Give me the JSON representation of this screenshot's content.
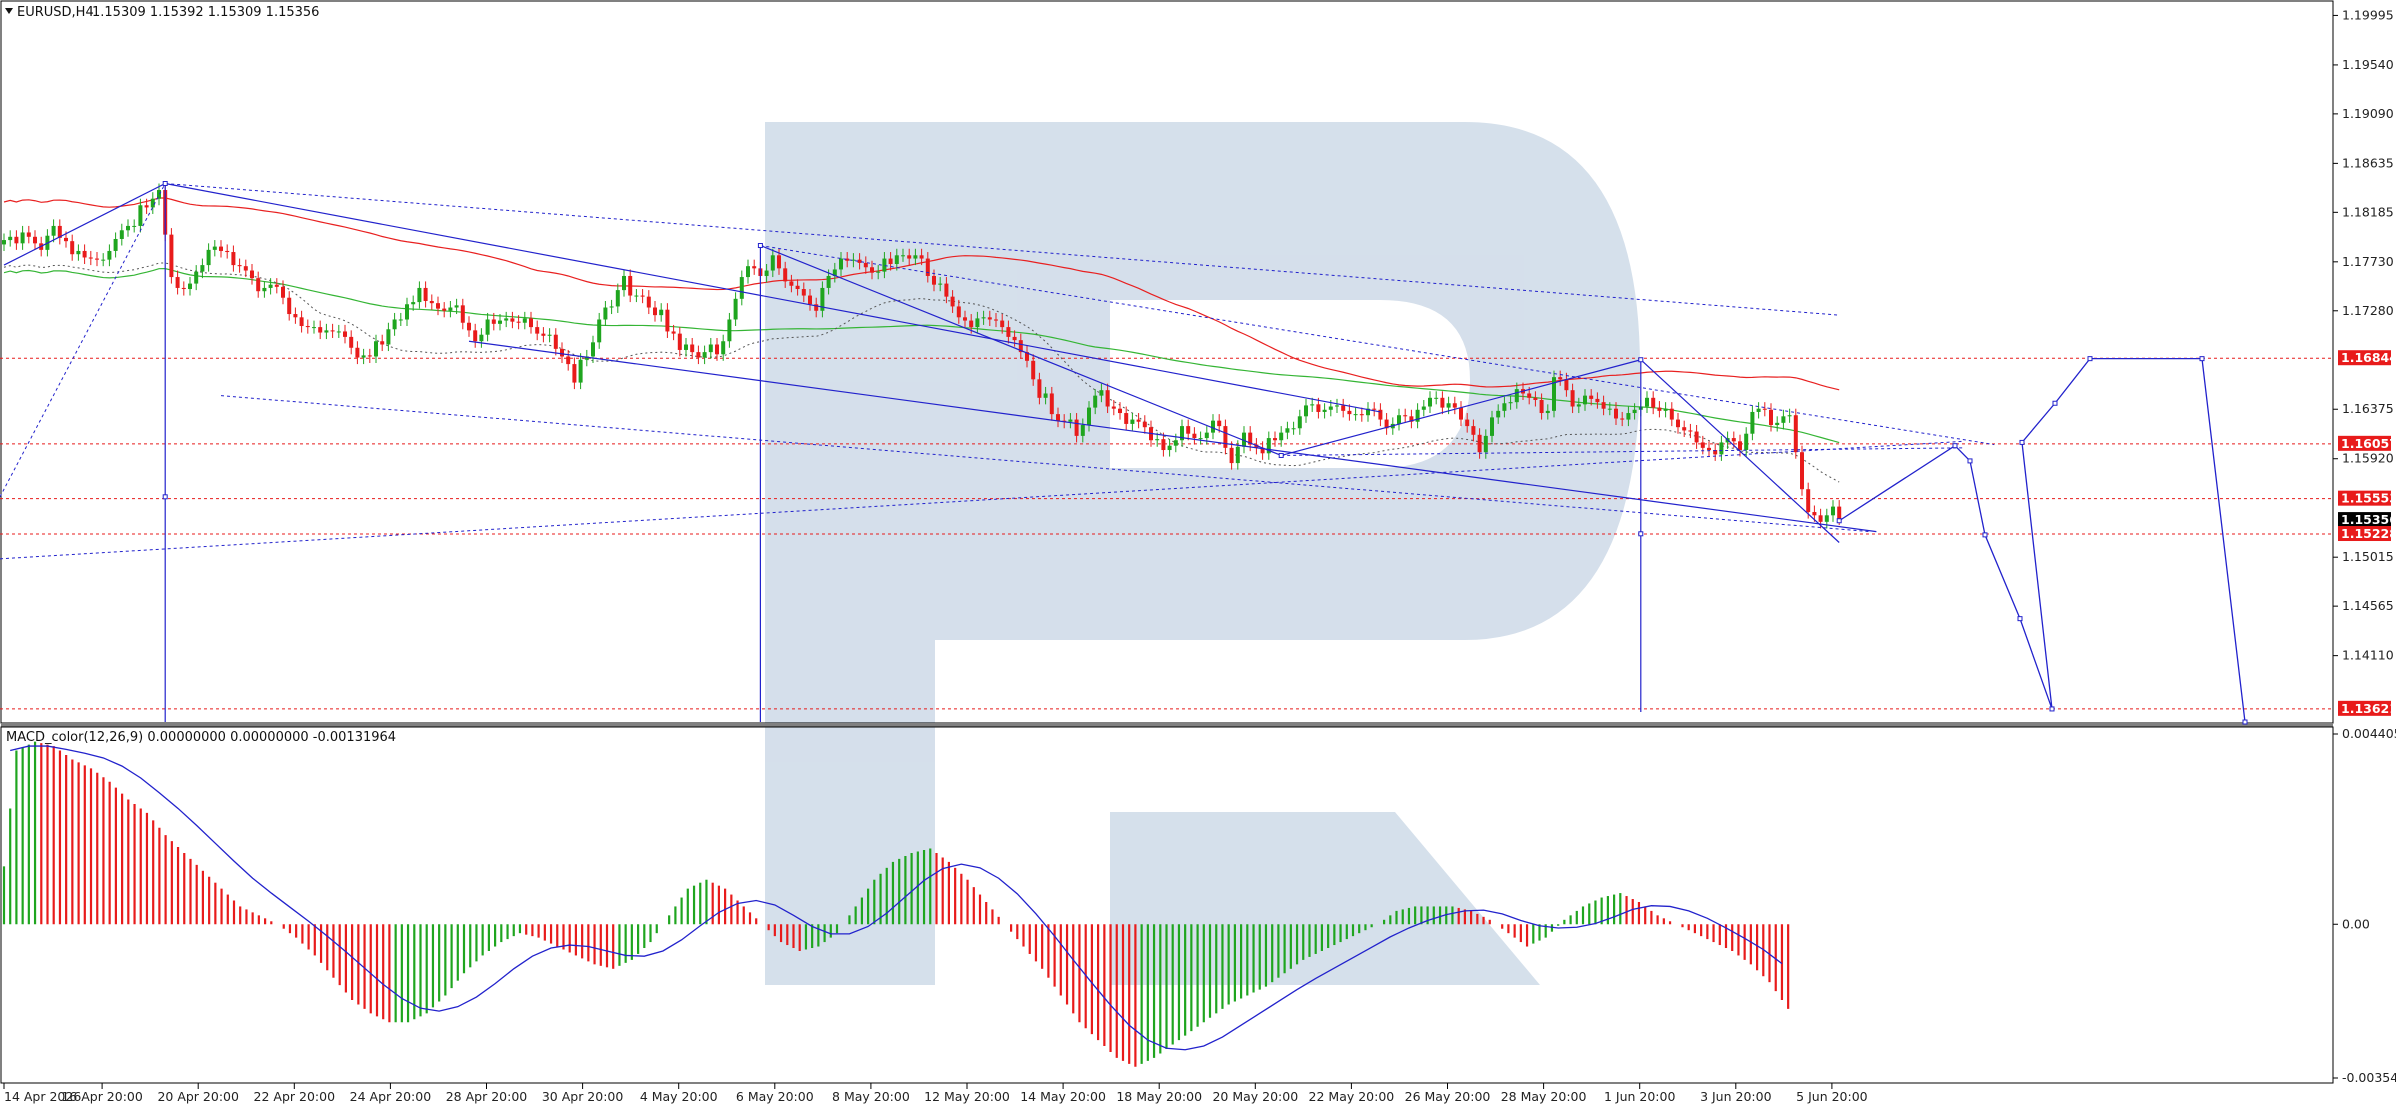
{
  "header": {
    "symbol": "EURUSD,H4",
    "ohlc": "1.15309 1.15392 1.15309 1.15356"
  },
  "macd_label": "MACD_color(12,26,9) 0.00000000 0.00000000 -0.00131964",
  "colors": {
    "bull": "#1fa51f",
    "bear": "#e81b1b",
    "wave": "#2222cc",
    "ma_red": "#e82020",
    "ma_green": "#35b535",
    "level": "#e81b1b",
    "watermark": "#d3deea",
    "current": "#000000"
  },
  "chart_data": [
    {
      "type": "candlestick",
      "symbol": "EURUSD",
      "timeframe": "H4",
      "x_tick_labels": [
        "14 Apr 2026",
        "16 Apr 20:00",
        "20 Apr 20:00",
        "22 Apr 20:00",
        "24 Apr 20:00",
        "28 Apr 20:00",
        "30 Apr 20:00",
        "4 May 20:00",
        "6 May 20:00",
        "8 May 20:00",
        "12 May 20:00",
        "14 May 20:00",
        "18 May 20:00",
        "20 May 20:00",
        "22 May 20:00",
        "26 May 20:00",
        "28 May 20:00",
        "1 Jun 20:00",
        "3 Jun 20:00",
        "5 Jun 20:00"
      ],
      "y_tick_labels": [
        "1.19995",
        "1.19540",
        "1.19090",
        "1.18635",
        "1.18185",
        "1.17730",
        "1.17280",
        "1.16375",
        "1.15920",
        "1.15015",
        "1.14565",
        "1.14110"
      ],
      "ylim": [
        1.135,
        1.201
      ],
      "price_levels": [
        {
          "label": "1.16844",
          "value": 1.16844
        },
        {
          "label": "1.16057",
          "value": 1.16057
        },
        {
          "label": "1.15553",
          "value": 1.15553
        },
        {
          "label": "1.15356",
          "value": 1.15356,
          "current": true
        },
        {
          "label": "1.15228",
          "value": 1.15228
        },
        {
          "label": "1.13621",
          "value": 1.13621
        }
      ],
      "candle_closes": [
        1.1793,
        1.1796,
        1.179,
        1.18,
        1.1796,
        1.179,
        1.1784,
        1.1797,
        1.1806,
        1.1795,
        1.1792,
        1.178,
        1.1783,
        1.1777,
        1.1776,
        1.1775,
        1.1775,
        1.1783,
        1.1794,
        1.1802,
        1.1806,
        1.1806,
        1.1825,
        1.1823,
        1.1831,
        1.1839,
        1.1798,
        1.1759,
        1.1749,
        1.1748,
        1.1753,
        1.1764,
        1.177,
        1.1784,
        1.1787,
        1.1783,
        1.1782,
        1.177,
        1.1769,
        1.1765,
        1.1758,
        1.1746,
        1.1749,
        1.1752,
        1.175,
        1.174,
        1.1725,
        1.1722,
        1.1714,
        1.1713,
        1.1713,
        1.1708,
        1.171,
        1.1709,
        1.1709,
        1.1704,
        1.1694,
        1.1685,
        1.1687,
        1.1686,
        1.17,
        1.1697,
        1.1711,
        1.172,
        1.172,
        1.1734,
        1.1736,
        1.1749,
        1.1737,
        1.1735,
        1.173,
        1.1728,
        1.1731,
        1.1733,
        1.1717,
        1.171,
        1.17,
        1.1706,
        1.172,
        1.1716,
        1.1719,
        1.1721,
        1.1718,
        1.1717,
        1.1721,
        1.1713,
        1.1707,
        1.1705,
        1.1706,
        1.1693,
        1.1686,
        1.1679,
        1.1662,
        1.1683,
        1.1686,
        1.1699,
        1.172,
        1.1731,
        1.1732,
        1.1747,
        1.176,
        1.1742,
        1.1742,
        1.1741,
        1.1731,
        1.1724,
        1.1729,
        1.1709,
        1.1707,
        1.1692,
        1.1697,
        1.169,
        1.1685,
        1.169,
        1.1697,
        1.1688,
        1.17,
        1.172,
        1.1739,
        1.1759,
        1.1769,
        1.1767,
        1.176,
        1.1765,
        1.1779,
        1.1767,
        1.1755,
        1.1751,
        1.1748,
        1.1742,
        1.1734,
        1.1728,
        1.1749,
        1.176,
        1.1766,
        1.1776,
        1.1774,
        1.1775,
        1.1772,
        1.1768,
        1.1763,
        1.1764,
        1.1776,
        1.1771,
        1.1779,
        1.1779,
        1.1776,
        1.1779,
        1.1776,
        1.176,
        1.1752,
        1.1753,
        1.1741,
        1.1732,
        1.1722,
        1.1719,
        1.1713,
        1.1721,
        1.1722,
        1.172,
        1.1719,
        1.1713,
        1.1704,
        1.1701,
        1.169,
        1.1682,
        1.1665,
        1.1648,
        1.1652,
        1.1633,
        1.1627,
        1.1626,
        1.1628,
        1.1613,
        1.1623,
        1.1639,
        1.165,
        1.1655,
        1.164,
        1.1638,
        1.1634,
        1.1624,
        1.1628,
        1.1626,
        1.1621,
        1.1609,
        1.161,
        1.16,
        1.1604,
        1.1609,
        1.1622,
        1.1615,
        1.1611,
        1.1611,
        1.1616,
        1.1627,
        1.1622,
        1.1602,
        1.1588,
        1.1603,
        1.1616,
        1.1605,
        1.1602,
        1.1597,
        1.1611,
        1.1609,
        1.1616,
        1.162,
        1.162,
        1.1631,
        1.1641,
        1.1642,
        1.1635,
        1.1637,
        1.164,
        1.1641,
        1.1636,
        1.1633,
        1.1633,
        1.1632,
        1.1638,
        1.1637,
        1.1628,
        1.162,
        1.1624,
        1.1632,
        1.1631,
        1.1626,
        1.1637,
        1.164,
        1.1648,
        1.1648,
        1.1639,
        1.1643,
        1.1639,
        1.1628,
        1.1622,
        1.1614,
        1.1598,
        1.1613,
        1.163,
        1.1636,
        1.1643,
        1.1644,
        1.1656,
        1.1652,
        1.1648,
        1.1646,
        1.1634,
        1.1636,
        1.1667,
        1.1665,
        1.1655,
        1.164,
        1.1642,
        1.165,
        1.1647,
        1.1644,
        1.1638,
        1.1638,
        1.1629,
        1.1628,
        1.1634,
        1.1637,
        1.164,
        1.1648,
        1.1639,
        1.1636,
        1.1638,
        1.1628,
        1.1621,
        1.1618,
        1.1617,
        1.1607,
        1.1602,
        1.16,
        1.1596,
        1.1607,
        1.1611,
        1.1608,
        1.16,
        1.1615,
        1.1635,
        1.1638,
        1.1637,
        1.1623,
        1.1625,
        1.1631,
        1.1632,
        1.1598,
        1.1564,
        1.1543,
        1.154,
        1.1534,
        1.154,
        1.1548,
        1.1537
      ],
      "wave_projection": [
        1.1535,
        1.1604,
        1.159,
        1.1522,
        1.1445,
        1.1362,
        1.1607,
        1.1643,
        1.1684,
        1.1684,
        1.135
      ],
      "macd_ylim": [
        -0.0035412,
        0.0044059
      ],
      "macd_tick_labels": [
        "0.0044059",
        "0.00",
        "-0.0035412"
      ],
      "macd_histogram": [
        0.0039,
        0.0041,
        0.004,
        0.0037,
        0.0035,
        0.0032,
        0.0028,
        0.0025,
        0.002,
        0.0016,
        0.0012,
        0.0008,
        0.0004,
        0.0002,
        0.0,
        -0.0003,
        -0.0007,
        -0.0012,
        -0.0017,
        -0.002,
        -0.0022,
        -0.0022,
        -0.002,
        -0.0016,
        -0.0011,
        -0.0007,
        -0.0004,
        -0.0002,
        -0.0003,
        -0.0005,
        -0.0007,
        -0.0009,
        -0.001,
        -0.0008,
        -0.0004,
        0.0002,
        0.0008,
        0.001,
        0.0008,
        0.0004,
        0.0,
        -0.0004,
        -0.0006,
        -0.0005,
        -0.0002,
        0.0004,
        0.001,
        0.0014,
        0.0016,
        0.0017,
        0.0014,
        0.001,
        0.0005,
        0.0,
        -0.0005,
        -0.001,
        -0.0016,
        -0.0022,
        -0.0026,
        -0.003,
        -0.0032,
        -0.003,
        -0.0027,
        -0.0024,
        -0.0021,
        -0.0018,
        -0.0016,
        -0.0014,
        -0.0011,
        -0.0008,
        -0.0006,
        -0.0004,
        -0.0002,
        0.0,
        0.0003,
        0.0004,
        0.0004,
        0.0004,
        0.0003,
        0.0001,
        -0.0002,
        -0.0005,
        -0.0003,
        0.0001,
        0.0004,
        0.0006,
        0.0007,
        0.0005,
        0.0002,
        0.0,
        -0.0002,
        -0.0004,
        -0.0006,
        -0.0009,
        -0.0013,
        -0.0019
      ]
    }
  ]
}
